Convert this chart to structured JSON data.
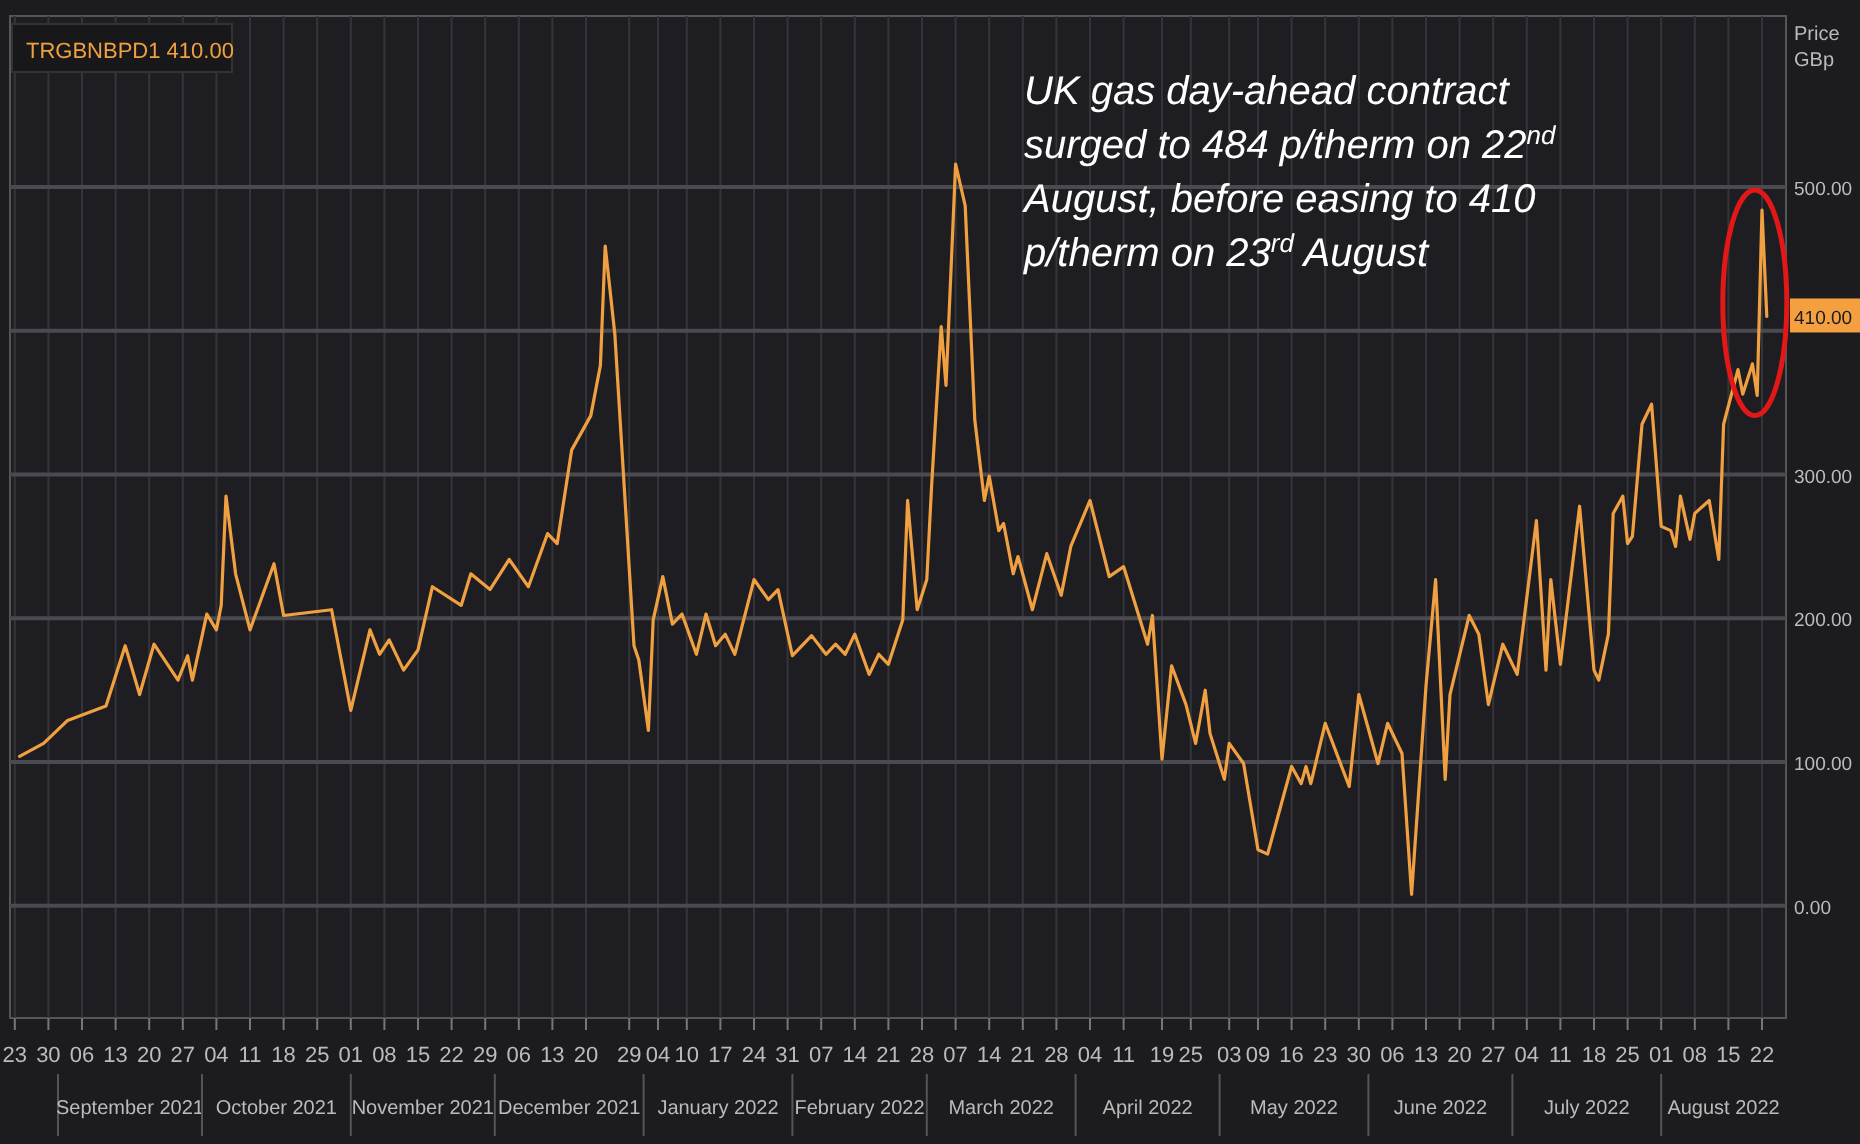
{
  "chart_data": {
    "type": "line",
    "ylabel": "Price GBp",
    "x": [
      "2021-08-24",
      "2021-08-29",
      "2021-09-03",
      "2021-09-11",
      "2021-09-15",
      "2021-09-18",
      "2021-09-21",
      "2021-09-26",
      "2021-09-28",
      "2021-09-29",
      "2021-10-02",
      "2021-10-04",
      "2021-10-05",
      "2021-10-06",
      "2021-10-08",
      "2021-10-11",
      "2021-10-16",
      "2021-10-18",
      "2021-10-28",
      "2021-11-01",
      "2021-11-05",
      "2021-11-07",
      "2021-11-09",
      "2021-11-12",
      "2021-11-15",
      "2021-11-18",
      "2021-11-24",
      "2021-11-26",
      "2021-11-30",
      "2021-12-04",
      "2021-12-08",
      "2021-12-12",
      "2021-12-14",
      "2021-12-17",
      "2021-12-21",
      "2021-12-23",
      "2021-12-24",
      "2021-12-26",
      "2021-12-30",
      "2021-12-31",
      "2022-01-02",
      "2022-01-03",
      "2022-01-05",
      "2022-01-07",
      "2022-01-09",
      "2022-01-12",
      "2022-01-14",
      "2022-01-16",
      "2022-01-18",
      "2022-01-20",
      "2022-01-24",
      "2022-01-27",
      "2022-01-29",
      "2022-02-01",
      "2022-02-05",
      "2022-02-08",
      "2022-02-10",
      "2022-02-12",
      "2022-02-14",
      "2022-02-17",
      "2022-02-19",
      "2022-02-21",
      "2022-02-24",
      "2022-02-25",
      "2022-02-27",
      "2022-03-01",
      "2022-03-02",
      "2022-03-04",
      "2022-03-05",
      "2022-03-07",
      "2022-03-09",
      "2022-03-11",
      "2022-03-13",
      "2022-03-14",
      "2022-03-16",
      "2022-03-17",
      "2022-03-19",
      "2022-03-20",
      "2022-03-23",
      "2022-03-26",
      "2022-03-29",
      "2022-03-31",
      "2022-04-04",
      "2022-04-08",
      "2022-04-11",
      "2022-04-16",
      "2022-04-17",
      "2022-04-19",
      "2022-04-21",
      "2022-04-24",
      "2022-04-26",
      "2022-04-28",
      "2022-04-29",
      "2022-05-02",
      "2022-05-03",
      "2022-05-06",
      "2022-05-09",
      "2022-05-11",
      "2022-05-16",
      "2022-05-18",
      "2022-05-19",
      "2022-05-20",
      "2022-05-23",
      "2022-05-28",
      "2022-05-30",
      "2022-06-03",
      "2022-06-05",
      "2022-06-08",
      "2022-06-10",
      "2022-06-13",
      "2022-06-15",
      "2022-06-17",
      "2022-06-18",
      "2022-06-22",
      "2022-06-24",
      "2022-06-26",
      "2022-06-29",
      "2022-07-02",
      "2022-07-06",
      "2022-07-08",
      "2022-07-09",
      "2022-07-11",
      "2022-07-15",
      "2022-07-18",
      "2022-07-19",
      "2022-07-21",
      "2022-07-22",
      "2022-07-24",
      "2022-07-25",
      "2022-07-26",
      "2022-07-28",
      "2022-07-30",
      "2022-08-01",
      "2022-08-03",
      "2022-08-04",
      "2022-08-05",
      "2022-08-07",
      "2022-08-08",
      "2022-08-11",
      "2022-08-13",
      "2022-08-14",
      "2022-08-17",
      "2022-08-18",
      "2022-08-20",
      "2022-08-21",
      "2022-08-22",
      "2022-08-23"
    ],
    "series": [
      {
        "name": "TRGBNBPD1 410.00",
        "color": "#f0a040",
        "values": [
          104,
          113,
          129,
          139,
          181,
          147,
          182,
          157,
          174,
          157,
          203,
          192,
          209,
          285,
          231,
          192,
          238,
          202,
          206,
          136,
          192,
          175,
          185,
          164,
          178,
          222,
          209,
          231,
          220,
          241,
          222,
          259,
          252,
          317,
          341,
          376,
          459,
          398,
          181,
          171,
          122,
          199,
          229,
          196,
          203,
          175,
          203,
          181,
          189,
          175,
          227,
          213,
          220,
          174,
          188,
          175,
          182,
          175,
          189,
          161,
          175,
          168,
          199,
          282,
          206,
          227,
          292,
          403,
          362,
          516,
          487,
          338,
          282,
          299,
          261,
          266,
          231,
          243,
          206,
          245,
          216,
          250,
          282,
          229,
          236,
          182,
          202,
          102,
          167,
          140,
          113,
          150,
          120,
          88,
          113,
          99,
          39,
          36,
          97,
          85,
          97,
          85,
          127,
          83,
          147,
          99,
          127,
          106,
          8,
          153,
          227,
          88,
          147,
          202,
          189,
          140,
          182,
          161,
          268,
          164,
          227,
          168,
          278,
          164,
          157,
          189,
          273,
          285,
          252,
          257,
          335,
          349,
          264,
          261,
          250,
          285,
          255,
          273,
          282,
          241,
          335,
          373,
          356,
          377,
          355,
          484,
          410
        ]
      }
    ],
    "xlim": [
      "2021-08-22",
      "2022-08-27"
    ],
    "xticks": [
      {
        "value": "2021-08-23",
        "label": "23"
      },
      {
        "value": "2021-08-30",
        "label": "30"
      },
      {
        "value": "2021-09-06",
        "label": "06"
      },
      {
        "value": "2021-09-13",
        "label": "13"
      },
      {
        "value": "2021-09-20",
        "label": "20"
      },
      {
        "value": "2021-09-27",
        "label": "27"
      },
      {
        "value": "2021-10-04",
        "label": "04"
      },
      {
        "value": "2021-10-11",
        "label": "11"
      },
      {
        "value": "2021-10-18",
        "label": "18"
      },
      {
        "value": "2021-10-25",
        "label": "25"
      },
      {
        "value": "2021-11-01",
        "label": "01"
      },
      {
        "value": "2021-11-08",
        "label": "08"
      },
      {
        "value": "2021-11-15",
        "label": "15"
      },
      {
        "value": "2021-11-22",
        "label": "22"
      },
      {
        "value": "2021-11-29",
        "label": "29"
      },
      {
        "value": "2021-12-06",
        "label": "06"
      },
      {
        "value": "2021-12-13",
        "label": "13"
      },
      {
        "value": "2021-12-20",
        "label": "20"
      },
      {
        "value": "2021-12-29",
        "label": "29"
      },
      {
        "value": "2022-01-04",
        "label": "04"
      },
      {
        "value": "2022-01-10",
        "label": "10"
      },
      {
        "value": "2022-01-17",
        "label": "17"
      },
      {
        "value": "2022-01-24",
        "label": "24"
      },
      {
        "value": "2022-01-31",
        "label": "31"
      },
      {
        "value": "2022-02-07",
        "label": "07"
      },
      {
        "value": "2022-02-14",
        "label": "14"
      },
      {
        "value": "2022-02-21",
        "label": "21"
      },
      {
        "value": "2022-02-28",
        "label": "28"
      },
      {
        "value": "2022-03-07",
        "label": "07"
      },
      {
        "value": "2022-03-14",
        "label": "14"
      },
      {
        "value": "2022-03-21",
        "label": "21"
      },
      {
        "value": "2022-03-28",
        "label": "28"
      },
      {
        "value": "2022-04-04",
        "label": "04"
      },
      {
        "value": "2022-04-11",
        "label": "11"
      },
      {
        "value": "2022-04-19",
        "label": "19"
      },
      {
        "value": "2022-04-25",
        "label": "25"
      },
      {
        "value": "2022-05-03",
        "label": "03"
      },
      {
        "value": "2022-05-09",
        "label": "09"
      },
      {
        "value": "2022-05-16",
        "label": "16"
      },
      {
        "value": "2022-05-23",
        "label": "23"
      },
      {
        "value": "2022-05-30",
        "label": "30"
      },
      {
        "value": "2022-06-06",
        "label": "06"
      },
      {
        "value": "2022-06-13",
        "label": "13"
      },
      {
        "value": "2022-06-20",
        "label": "20"
      },
      {
        "value": "2022-06-27",
        "label": "27"
      },
      {
        "value": "2022-07-04",
        "label": "04"
      },
      {
        "value": "2022-07-11",
        "label": "11"
      },
      {
        "value": "2022-07-18",
        "label": "18"
      },
      {
        "value": "2022-07-25",
        "label": "25"
      },
      {
        "value": "2022-08-01",
        "label": "01"
      },
      {
        "value": "2022-08-08",
        "label": "08"
      },
      {
        "value": "2022-08-15",
        "label": "15"
      },
      {
        "value": "2022-08-22",
        "label": "22"
      }
    ],
    "ylim": [
      -78,
      619
    ],
    "yticks": [
      {
        "value": 0,
        "label": "0.00"
      },
      {
        "value": 100,
        "label": "100.00"
      },
      {
        "value": 200,
        "label": "200.00"
      },
      {
        "value": 300,
        "label": "300.00"
      },
      {
        "value": 400,
        "label": null
      },
      {
        "value": 500,
        "label": "500.00"
      }
    ],
    "grid": true,
    "legend": "top left",
    "annotations": [
      "UK gas day-ahead contract surged to 484 p/therm on 22$^{nd}$ August, before easing to 410 p/therm on 23$^{rd}$ August",
      {
        "text": "410.00",
        "y": 410
      },
      "September 2021",
      "October 2021",
      "November 2021",
      "December 2021",
      "January 2022",
      "February 2022",
      "March 2022",
      "April 2022",
      "May 2022",
      "June 2022",
      "July 2022",
      "August 2022"
    ]
  }
}
